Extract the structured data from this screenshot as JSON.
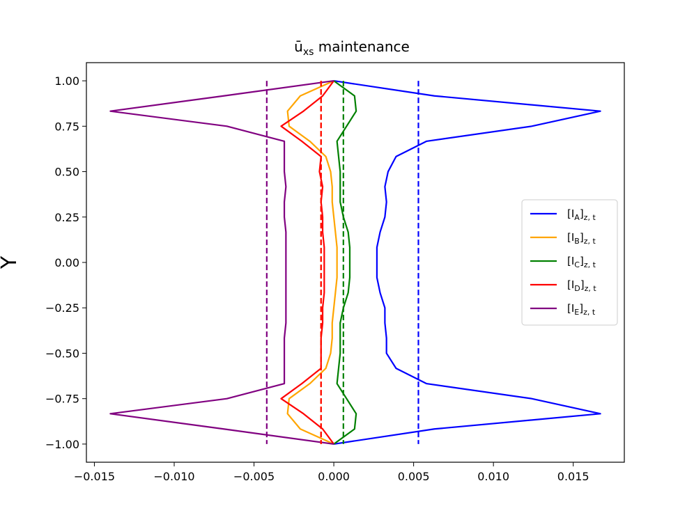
{
  "chart_data": {
    "type": "line",
    "title": "ū",
    "title_sub": "xs",
    "title_rest": " maintenance",
    "xlabel": "",
    "ylabel": "Y",
    "xlim": [
      -0.0155,
      0.0182
    ],
    "ylim": [
      -1.1,
      1.1
    ],
    "xticks": [
      -0.015,
      -0.01,
      -0.005,
      0.0,
      0.005,
      0.01,
      0.015
    ],
    "xtick_labels": [
      "−0.015",
      "−0.010",
      "−0.005",
      "0.000",
      "0.005",
      "0.010",
      "0.015"
    ],
    "yticks": [
      1.0,
      0.75,
      0.5,
      0.25,
      0.0,
      -0.25,
      -0.5,
      -0.75,
      -1.0
    ],
    "ytick_labels": [
      "1.00",
      "0.75",
      "0.50",
      "0.25",
      "0.00",
      "−0.25",
      "−0.50",
      "−0.75",
      "−1.00"
    ],
    "grid": false,
    "legend_position": "center-right",
    "y": [
      1.0,
      0.917,
      0.833,
      0.75,
      0.667,
      0.583,
      0.5,
      0.417,
      0.333,
      0.25,
      0.167,
      0.083,
      0.0,
      -0.083,
      -0.167,
      -0.25,
      -0.333,
      -0.417,
      -0.5,
      -0.583,
      -0.667,
      -0.75,
      -0.833,
      -0.917,
      -1.0
    ],
    "series": [
      {
        "name": "[I_A]_{z,t}",
        "label_main": "[I",
        "label_sub1": "A",
        "label_mid": "]",
        "label_sub2": "z, t",
        "color": "#0000ff",
        "x": [
          0.0,
          0.0063,
          0.0167,
          0.0124,
          0.0058,
          0.0039,
          0.0034,
          0.0032,
          0.0033,
          0.0032,
          0.0029,
          0.0027,
          0.0027,
          0.0027,
          0.0029,
          0.0032,
          0.0032,
          0.0033,
          0.0033,
          0.0039,
          0.0058,
          0.0124,
          0.0167,
          0.0063,
          0.0
        ],
        "dashed_x": 0.0053
      },
      {
        "name": "[I_B]_{z,t}",
        "label_main": "[I",
        "label_sub1": "B",
        "label_mid": "]",
        "label_sub2": "z, t",
        "color": "#ffa500",
        "x": [
          0.0,
          -0.0021,
          -0.0029,
          -0.0028,
          -0.0015,
          -0.0005,
          -0.0002,
          -0.0001,
          -0.0001,
          0.0,
          0.0001,
          0.0002,
          0.0002,
          0.0002,
          0.0001,
          0.0,
          -0.0001,
          -0.0001,
          -0.0002,
          -0.0005,
          -0.0015,
          -0.0028,
          -0.0029,
          -0.0021,
          0.0
        ],
        "dashed_x": -0.0008
      },
      {
        "name": "[I_C]_{z,t}",
        "label_main": "[I",
        "label_sub1": "C",
        "label_mid": "]",
        "label_sub2": "z, t",
        "color": "#008000",
        "x": [
          0.0,
          0.0013,
          0.0014,
          0.0008,
          0.0002,
          0.0003,
          0.0004,
          0.0004,
          0.0004,
          0.0006,
          0.0009,
          0.001,
          0.001,
          0.001,
          0.0009,
          0.0006,
          0.0004,
          0.0004,
          0.0004,
          0.0003,
          0.0002,
          0.0008,
          0.0014,
          0.0013,
          0.0
        ],
        "dashed_x": 0.0006
      },
      {
        "name": "[I_D]_{z,t}",
        "label_main": "[I",
        "label_sub1": "D",
        "label_mid": "]",
        "label_sub2": "z, t",
        "color": "#ff0000",
        "x": [
          0.0,
          -0.0007,
          -0.0019,
          -0.0033,
          -0.002,
          -0.0008,
          -0.0009,
          -0.0007,
          -0.0008,
          -0.0007,
          -0.0007,
          -0.0006,
          -0.0006,
          -0.0006,
          -0.0006,
          -0.0007,
          -0.0007,
          -0.0008,
          -0.0008,
          -0.0008,
          -0.002,
          -0.0033,
          -0.0019,
          -0.0007,
          0.0
        ],
        "dashed_x": -0.0008
      },
      {
        "name": "[I_E]_{z,t}",
        "label_main": "[I",
        "label_sub1": "E",
        "label_mid": "]",
        "label_sub2": "z, t",
        "color": "#800080",
        "x": [
          0.0,
          -0.0069,
          -0.014,
          -0.0067,
          -0.0031,
          -0.0031,
          -0.0031,
          -0.003,
          -0.0031,
          -0.0031,
          -0.003,
          -0.003,
          -0.003,
          -0.003,
          -0.003,
          -0.003,
          -0.003,
          -0.0031,
          -0.0031,
          -0.0031,
          -0.0031,
          -0.0067,
          -0.014,
          -0.0069,
          0.0
        ],
        "dashed_x": -0.0042
      }
    ]
  }
}
